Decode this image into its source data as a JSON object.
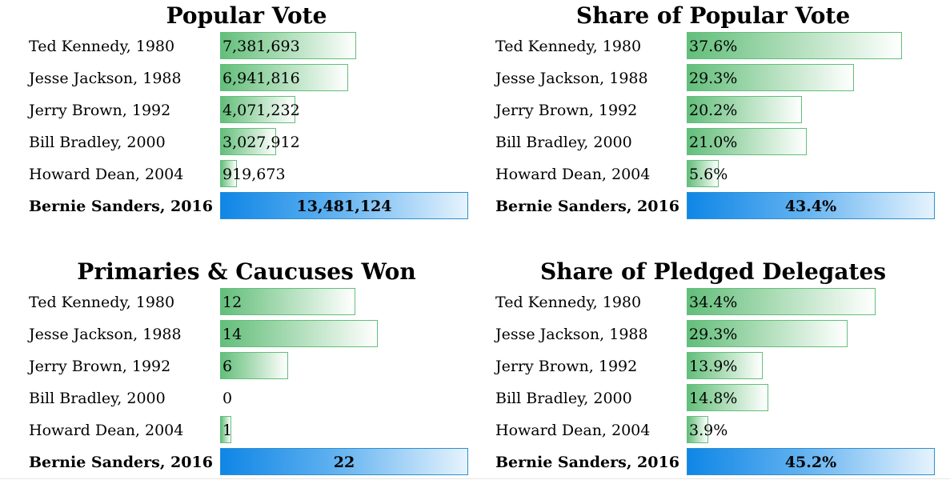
{
  "chart_data": [
    {
      "type": "bar",
      "orientation": "horizontal",
      "title": "Popular Vote",
      "categories": [
        "Ted Kennedy, 1980",
        "Jesse Jackson, 1988",
        "Jerry Brown, 1992",
        "Bill Bradley, 2000",
        "Howard Dean, 2004",
        "Bernie Sanders, 2016"
      ],
      "values": [
        7381693,
        6941816,
        4071232,
        3027912,
        919673,
        13481124
      ],
      "value_labels": [
        "7,381,693",
        "6,941,816",
        "4,071,232",
        "3,027,912",
        "919,673",
        "13,481,124"
      ],
      "highlight_index": 5,
      "xlim": [
        0,
        13481124
      ]
    },
    {
      "type": "bar",
      "orientation": "horizontal",
      "title": "Share of Popular Vote",
      "categories": [
        "Ted Kennedy, 1980",
        "Jesse Jackson, 1988",
        "Jerry Brown, 1992",
        "Bill Bradley, 2000",
        "Howard Dean, 2004",
        "Bernie Sanders, 2016"
      ],
      "values": [
        37.6,
        29.3,
        20.2,
        21.0,
        5.6,
        43.4
      ],
      "value_labels": [
        "37.6%",
        "29.3%",
        "20.2%",
        "21.0%",
        "5.6%",
        "43.4%"
      ],
      "highlight_index": 5,
      "xlim": [
        0,
        43.4
      ]
    },
    {
      "type": "bar",
      "orientation": "horizontal",
      "title": "Primaries & Caucuses Won",
      "categories": [
        "Ted Kennedy, 1980",
        "Jesse Jackson, 1988",
        "Jerry Brown, 1992",
        "Bill Bradley, 2000",
        "Howard Dean, 2004",
        "Bernie Sanders, 2016"
      ],
      "values": [
        12,
        14,
        6,
        0,
        1,
        22
      ],
      "value_labels": [
        "12",
        "14",
        "6",
        "0",
        "1",
        "22"
      ],
      "highlight_index": 5,
      "xlim": [
        0,
        22
      ]
    },
    {
      "type": "bar",
      "orientation": "horizontal",
      "title": "Share of Pledged Delegates",
      "categories": [
        "Ted Kennedy, 1980",
        "Jesse Jackson, 1988",
        "Jerry Brown, 1992",
        "Bill Bradley, 2000",
        "Howard Dean, 2004",
        "Bernie Sanders, 2016"
      ],
      "values": [
        34.4,
        29.3,
        13.9,
        14.8,
        3.9,
        45.2
      ],
      "value_labels": [
        "34.4%",
        "29.3%",
        "13.9%",
        "14.8%",
        "3.9%",
        "45.2%"
      ],
      "highlight_index": 5,
      "xlim": [
        0,
        45.2
      ]
    }
  ],
  "colors": {
    "bar_fill": "#63be7b",
    "bar_highlight": "#0f86e6"
  }
}
